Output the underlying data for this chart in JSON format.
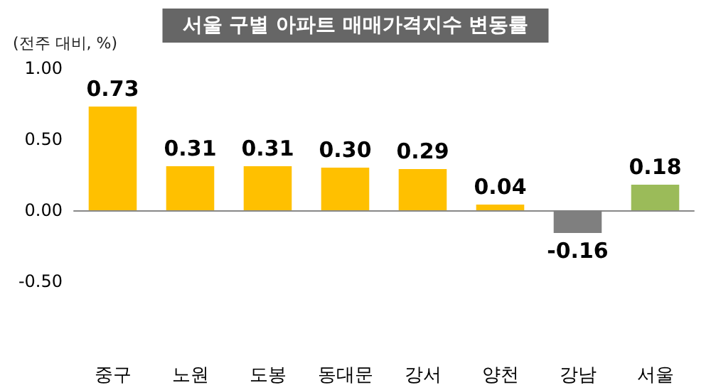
{
  "chart_data": {
    "type": "bar",
    "title": "서울 구별 아파트 매매가격지수 변동률",
    "ylabel": "(전주 대비, %)",
    "categories": [
      "중구",
      "노원",
      "도봉",
      "동대문",
      "강서",
      "양천",
      "강남",
      "서울"
    ],
    "values": [
      0.73,
      0.31,
      0.31,
      0.3,
      0.29,
      0.04,
      -0.16,
      0.18
    ],
    "colors": [
      "#ffc000",
      "#ffc000",
      "#ffc000",
      "#ffc000",
      "#ffc000",
      "#ffc000",
      "#7f7f7f",
      "#9bbb59"
    ],
    "value_labels": [
      "0.73",
      "0.31",
      "0.31",
      "0.30",
      "0.29",
      "0.04",
      "-0.16",
      "0.18"
    ],
    "ylim": [
      -0.5,
      1.0
    ],
    "yticks": [
      {
        "value": -0.5,
        "label": "-0.50"
      },
      {
        "value": 0,
        "label": "0.00"
      },
      {
        "value": 0.5,
        "label": "0.50"
      },
      {
        "value": 1.0,
        "label": "1.00"
      }
    ],
    "line_style": "solid"
  }
}
